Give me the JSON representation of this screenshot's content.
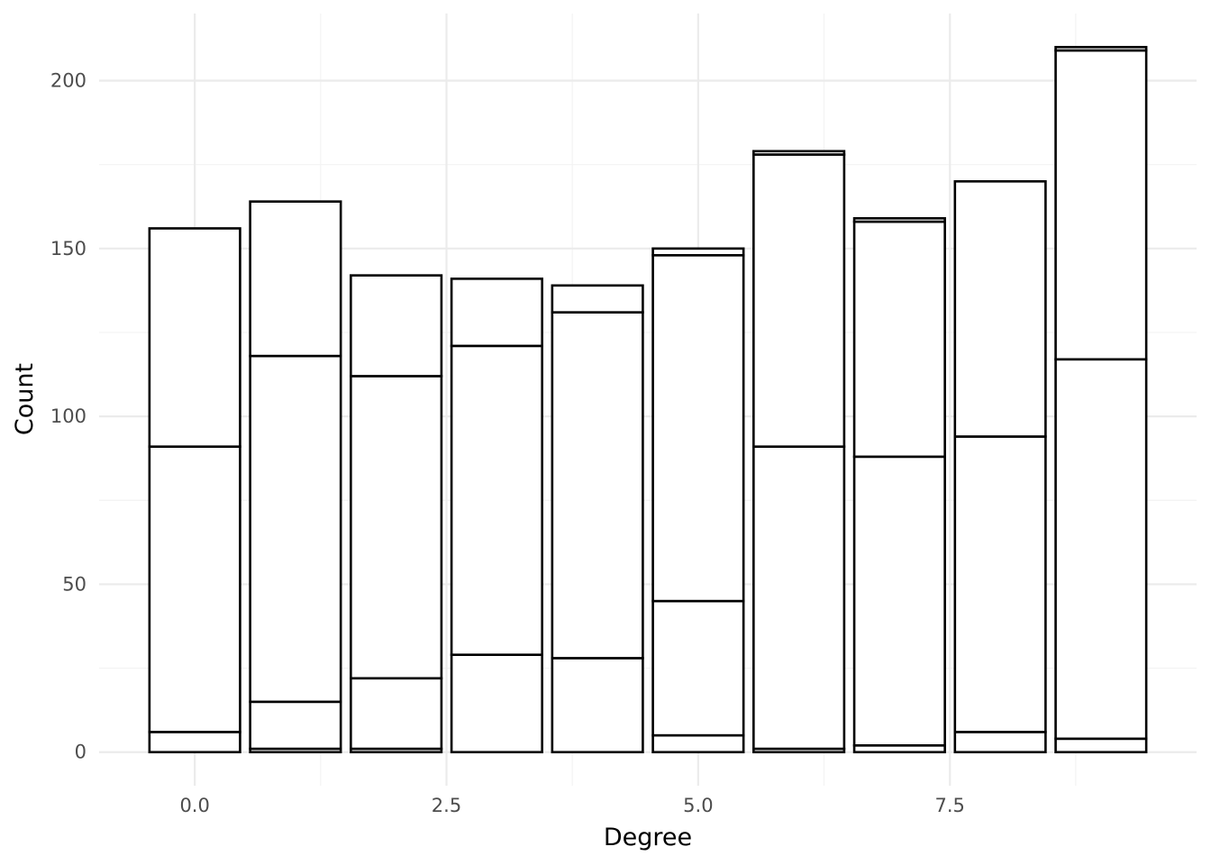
{
  "chart_data": {
    "type": "bar",
    "stacked": true,
    "title": "",
    "xlabel": "Degree",
    "ylabel": "Count",
    "x": [
      0,
      1,
      2,
      3,
      4,
      5,
      6,
      7,
      8,
      9
    ],
    "xlim": [
      -0.95,
      9.95
    ],
    "ylim": [
      -10,
      220
    ],
    "x_ticks": [
      0,
      2.5,
      5,
      7.5
    ],
    "x_tick_labels": [
      "0.0",
      "2.5",
      "5.0",
      "7.5"
    ],
    "y_ticks": [
      0,
      50,
      100,
      150,
      200
    ],
    "y_tick_labels": [
      "0",
      "50",
      "100",
      "150",
      "200"
    ],
    "grid": true,
    "legend": "none",
    "fill_color": "#ffffff",
    "outline_color": "#000000",
    "series": [
      {
        "values": [
          6,
          1,
          1,
          0,
          0,
          5,
          1,
          2,
          6,
          4
        ]
      },
      {
        "values": [
          0,
          14,
          21,
          29,
          28,
          40,
          0,
          0,
          0,
          0
        ]
      },
      {
        "values": [
          85,
          103,
          90,
          92,
          103,
          103,
          90,
          86,
          88,
          113
        ]
      },
      {
        "values": [
          65,
          46,
          30,
          20,
          8,
          2,
          87,
          70,
          76,
          92
        ]
      },
      {
        "values": [
          0,
          0,
          0,
          0,
          0,
          0,
          1,
          1,
          0,
          1
        ]
      }
    ]
  }
}
